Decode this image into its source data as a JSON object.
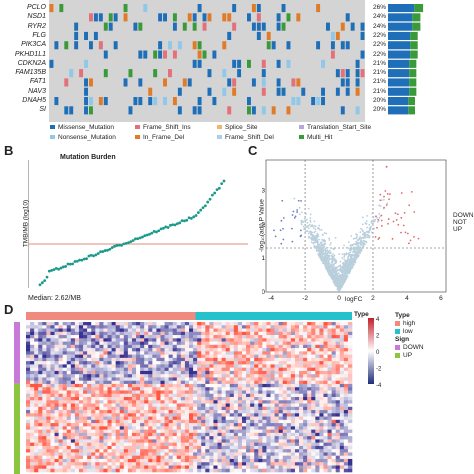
{
  "oncoplot": {
    "genes": [
      {
        "name": "PCLO",
        "pct": "26%"
      },
      {
        "name": "NSD1",
        "pct": "24%"
      },
      {
        "name": "RYR2",
        "pct": "24%"
      },
      {
        "name": "FLG",
        "pct": "22%"
      },
      {
        "name": "PIK3CA",
        "pct": "22%"
      },
      {
        "name": "PKHD1L1",
        "pct": "22%"
      },
      {
        "name": "CDKN2A",
        "pct": "21%"
      },
      {
        "name": "FAM135B",
        "pct": "21%"
      },
      {
        "name": "FAT1",
        "pct": "21%"
      },
      {
        "name": "NAV3",
        "pct": "21%"
      },
      {
        "name": "DNAH5",
        "pct": "20%"
      },
      {
        "name": "SI",
        "pct": "20%"
      }
    ],
    "legend": [
      {
        "label": "Missense_Mutation",
        "color": "#1f6fb8"
      },
      {
        "label": "Frame_Shift_Ins",
        "color": "#e4707a"
      },
      {
        "label": "Splice_Site",
        "color": "#f3b36b"
      },
      {
        "label": "Translation_Start_Site",
        "color": "#b9a7d9"
      },
      {
        "label": "Nonsense_Mutation",
        "color": "#8fc8e8"
      },
      {
        "label": "In_Frame_Del",
        "color": "#e07b2a"
      },
      {
        "label": "Frame_Shift_Del",
        "color": "#a9cfe9"
      },
      {
        "label": "Multi_Hit",
        "color": "#3a9a3a"
      }
    ]
  },
  "panel_b": {
    "letter": "B",
    "title": "Mutation Burden",
    "ylabel": "TMB/MB (log10)",
    "median": "Median: 2.62/MB"
  },
  "panel_c": {
    "letter": "C",
    "xlabel": "logFC",
    "ylabel": "-log₁₀(adj) P Value",
    "legend": [
      "DOWN",
      "NOT",
      "UP"
    ],
    "xticks": [
      "-4",
      "-2",
      "0",
      "2",
      "4",
      "6"
    ],
    "yticks": [
      "0",
      "1",
      "2",
      "3"
    ]
  },
  "panel_d": {
    "letter": "D",
    "type_title": "Type",
    "type_items": [
      {
        "label": "high",
        "color": "#f08a7f"
      },
      {
        "label": "low",
        "color": "#26c2cc"
      }
    ],
    "sign_title": "Sign",
    "sign_items": [
      {
        "label": "DOWN",
        "color": "#c97ad8"
      },
      {
        "label": "UP",
        "color": "#8cc63f"
      }
    ],
    "type_label": "Type",
    "scale_ticks": [
      "4",
      "2",
      "0",
      "-2",
      "-4"
    ]
  }
}
